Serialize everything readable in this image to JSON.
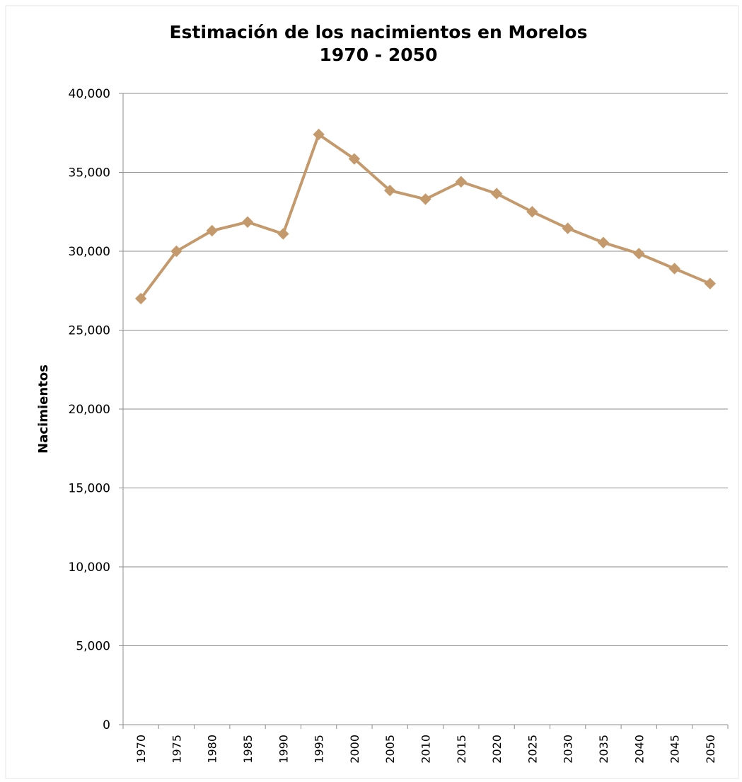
{
  "chart_data": {
    "type": "line",
    "title": "Estimación de los nacimientos en Morelos",
    "subtitle": "1970 - 2050",
    "xlabel": "",
    "ylabel": "Nacimientos",
    "categories": [
      "1970",
      "1975",
      "1980",
      "1985",
      "1990",
      "1995",
      "2000",
      "2005",
      "2010",
      "2015",
      "2020",
      "2025",
      "2030",
      "2035",
      "2040",
      "2045",
      "2050"
    ],
    "series": [
      {
        "values": [
          27000,
          30000,
          31300,
          31850,
          31100,
          37400,
          35850,
          33850,
          33300,
          34400,
          33650,
          32500,
          31450,
          30550,
          29850,
          28900,
          27950
        ],
        "color": "#c49a6c",
        "marker": "diamond"
      }
    ],
    "ylim": [
      0,
      40000
    ],
    "yticks": [
      "0",
      "5,000",
      "10,000",
      "15,000",
      "20,000",
      "25,000",
      "30,000",
      "35,000",
      "40,000"
    ],
    "grid": true,
    "legend": "none"
  }
}
